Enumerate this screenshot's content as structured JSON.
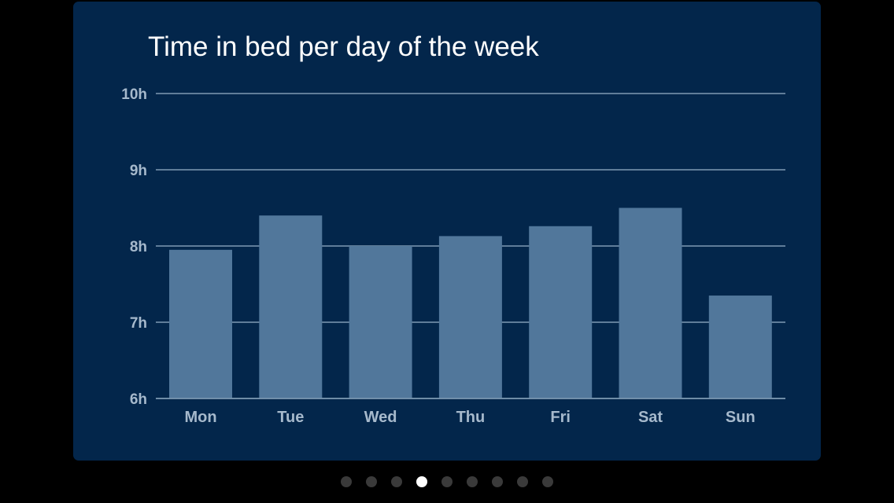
{
  "card": {
    "title": "Time in bed per day of the week"
  },
  "colors": {
    "card_background": "#03264b",
    "bar": "#51779b",
    "grid": "#7f9ab3",
    "tick_label": "#a6b9cc",
    "page_dot_active": "#ffffff",
    "page_dot_inactive": "#3a3a3a"
  },
  "chart_data": {
    "type": "bar",
    "title": "Time in bed per day of the week",
    "categories": [
      "Mon",
      "Tue",
      "Wed",
      "Thu",
      "Fri",
      "Sat",
      "Sun"
    ],
    "values": [
      7.95,
      8.4,
      8.0,
      8.13,
      8.26,
      8.5,
      7.35
    ],
    "ylim": [
      6,
      10
    ],
    "y_ticks": [
      6,
      7,
      8,
      9,
      10
    ],
    "y_tick_labels": [
      "6h",
      "7h",
      "8h",
      "9h",
      "10h"
    ],
    "grid": true,
    "legend": "none"
  },
  "pager": {
    "count": 9,
    "active_index": 3
  }
}
